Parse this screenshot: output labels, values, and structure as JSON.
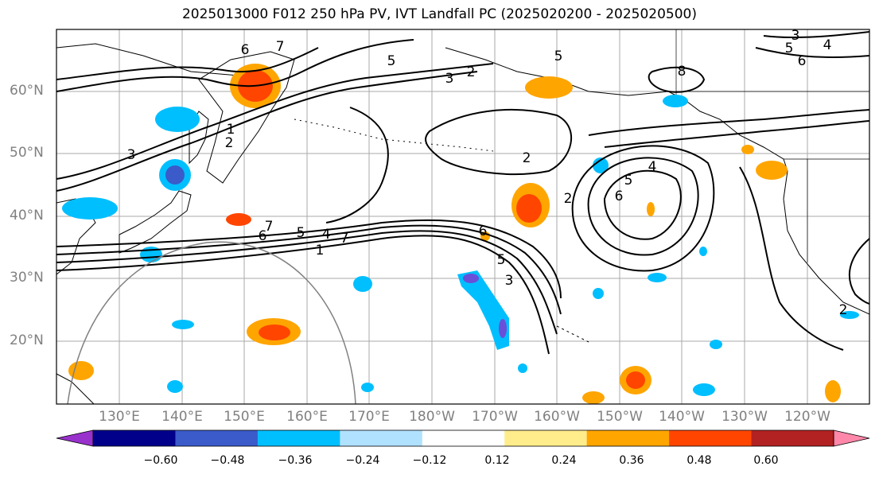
{
  "title": "2025013000 F012 250 hPa PV, IVT Landfall PC (2025020200 - 2025020500)",
  "map": {
    "lat_labels": [
      "60°N",
      "50°N",
      "40°N",
      "30°N",
      "20°N"
    ],
    "lon_labels": [
      "130°E",
      "140°E",
      "150°E",
      "160°E",
      "170°E",
      "180°W",
      "170°W",
      "160°W",
      "150°W",
      "140°W",
      "130°W",
      "120°W"
    ],
    "contour_labels": [
      "6",
      "7",
      "5",
      "3",
      "2",
      "5",
      "8",
      "3",
      "4",
      "5",
      "6",
      "1",
      "2",
      "3",
      "2",
      "2",
      "4",
      "5",
      "6",
      "7",
      "6",
      "5",
      "4",
      "1",
      "7",
      "6",
      "5",
      "3",
      "2"
    ]
  },
  "colorbar": {
    "colors": [
      "#9932CC",
      "#00008B",
      "#3A5BC9",
      "#00BFFF",
      "#B0E2FF",
      "#FFFFFF",
      "#FFEC8B",
      "#FFA500",
      "#FF4500",
      "#B22222",
      "#FF88AA"
    ],
    "tick_labels": [
      "−0.60",
      "−0.48",
      "−0.36",
      "−0.24",
      "−0.12",
      "0.12",
      "0.24",
      "0.36",
      "0.48",
      "0.60"
    ]
  }
}
